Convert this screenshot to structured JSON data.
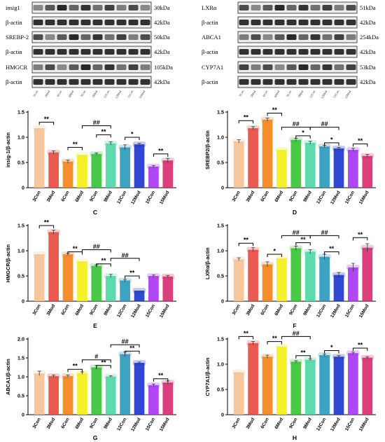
{
  "western_blots": [
    {
      "side": "left",
      "rows": [
        {
          "label": "insig1",
          "size": "30kDa"
        },
        {
          "label": "β-actin",
          "size": "42kDa"
        },
        {
          "label": "SREBP-2",
          "size": "50kDa"
        },
        {
          "label": "β-actin",
          "size": "42kDa"
        },
        {
          "label": "HMGCR",
          "size": "105kDa"
        },
        {
          "label": "β-actin",
          "size": "42kDa"
        }
      ]
    },
    {
      "side": "right",
      "rows": [
        {
          "label": "LXRα",
          "size": "51kDa"
        },
        {
          "label": "β-actin",
          "size": "42kDa"
        },
        {
          "label": "ABCA1",
          "size": "254kDa"
        },
        {
          "label": "β-actin",
          "size": "42kDa"
        },
        {
          "label": "CYP7A1",
          "size": "53kDa"
        },
        {
          "label": "β-actin",
          "size": "42kDa"
        }
      ]
    }
  ],
  "colors": [
    "#F5BF8E",
    "#E8433A",
    "#F57F0E",
    "#F2EE0E",
    "#2FC12F",
    "#47D6A3",
    "#2196B8",
    "#1430CC",
    "#A52DF2",
    "#D6246A"
  ],
  "chart_data": [
    {
      "panel": "C",
      "type": "bar",
      "ylabel": "insig-1/β-actin",
      "ylim": [
        0,
        1.5
      ],
      "yticks": [
        0,
        0.5,
        1.0,
        1.5
      ],
      "categories": [
        "3Con",
        "3Mod",
        "6Con",
        "6Mod",
        "9Con",
        "9Mod",
        "12Con",
        "12Mod",
        "15Con",
        "15Mod"
      ],
      "values": [
        1.18,
        0.7,
        0.52,
        0.65,
        0.67,
        0.88,
        0.8,
        0.86,
        0.42,
        0.54
      ],
      "errors": [
        0.0,
        0.03,
        0.03,
        0.0,
        0.02,
        0.03,
        0.05,
        0.02,
        0.02,
        0.04
      ],
      "brackets": [
        {
          "from": 0,
          "to": 1,
          "label": "**",
          "level": 1.3
        },
        {
          "from": 2,
          "to": 3,
          "label": "**",
          "level": 0.8
        },
        {
          "from": 4,
          "to": 5,
          "label": "**",
          "level": 1.05
        },
        {
          "from": 3,
          "to": 5,
          "label": "##",
          "level": 1.23
        },
        {
          "from": 6,
          "to": 7,
          "label": "*",
          "level": 1.0
        },
        {
          "from": 8,
          "to": 9,
          "label": "**",
          "level": 0.67
        }
      ]
    },
    {
      "panel": "D",
      "type": "bar",
      "ylabel": "SREBP2/β-actin",
      "ylim": [
        0,
        1.5
      ],
      "yticks": [
        0,
        0.5,
        1.0,
        1.5
      ],
      "categories": [
        "3Con",
        "3Mod",
        "6Con",
        "6Mod",
        "9Con",
        "9Mod",
        "12Con",
        "12Mod",
        "15Con",
        "15Mod"
      ],
      "values": [
        0.92,
        1.18,
        1.35,
        0.75,
        0.95,
        0.89,
        0.82,
        0.78,
        0.75,
        0.63
      ],
      "errors": [
        0.03,
        0.03,
        0.03,
        0.0,
        0.03,
        0.03,
        0.02,
        0.02,
        0.03,
        0.03
      ],
      "brackets": [
        {
          "from": 0,
          "to": 1,
          "label": "**",
          "level": 1.33
        },
        {
          "from": 2,
          "to": 3,
          "label": "**",
          "level": 1.48
        },
        {
          "from": 3,
          "to": 5,
          "label": "##",
          "level": 1.2
        },
        {
          "from": 4,
          "to": 5,
          "label": "*",
          "level": 1.03
        },
        {
          "from": 5,
          "to": 7,
          "label": "##",
          "level": 1.2
        },
        {
          "from": 6,
          "to": 7,
          "label": "*",
          "level": 0.89
        },
        {
          "from": 8,
          "to": 9,
          "label": "**",
          "level": 0.87
        }
      ]
    },
    {
      "panel": "E",
      "type": "bar",
      "ylabel": "HMGCR/β-actin",
      "ylim": [
        0,
        1.5
      ],
      "yticks": [
        0,
        0.5,
        1.0,
        1.5
      ],
      "categories": [
        "3Con",
        "3Mod",
        "6Con",
        "6Mod",
        "9Con",
        "9Mod",
        "12Con",
        "12Mod",
        "15Con",
        "15Mod"
      ],
      "values": [
        0.93,
        1.37,
        0.93,
        0.79,
        0.7,
        0.5,
        0.41,
        0.21,
        0.5,
        0.49
      ],
      "errors": [
        0.0,
        0.04,
        0.02,
        0.0,
        0.02,
        0.03,
        0.02,
        0.0,
        0.02,
        0.02
      ],
      "brackets": [
        {
          "from": 0,
          "to": 1,
          "label": "**",
          "level": 1.5
        },
        {
          "from": 2,
          "to": 3,
          "label": "**",
          "level": 0.98
        },
        {
          "from": 3,
          "to": 5,
          "label": "##",
          "level": 1.02
        },
        {
          "from": 4,
          "to": 5,
          "label": "**",
          "level": 0.74
        },
        {
          "from": 5,
          "to": 7,
          "label": "##",
          "level": 0.85
        },
        {
          "from": 6,
          "to": 7,
          "label": "**",
          "level": 0.5
        }
      ]
    },
    {
      "panel": "F",
      "type": "bar",
      "ylabel": "LXRα/β-actin",
      "ylim": [
        0,
        1.5
      ],
      "yticks": [
        0,
        0.5,
        1.0,
        1.5
      ],
      "categories": [
        "3Con",
        "3Mod",
        "6Con",
        "6Mod",
        "9Con",
        "9Mod",
        "12Con",
        "12Mod",
        "15Con",
        "15Mod"
      ],
      "values": [
        0.83,
        1.02,
        0.73,
        0.85,
        1.05,
        0.98,
        0.88,
        0.52,
        0.67,
        1.06
      ],
      "errors": [
        0.03,
        0.04,
        0.05,
        0.0,
        0.04,
        0.04,
        0.05,
        0.05,
        0.08,
        0.08
      ],
      "brackets": [
        {
          "from": 0,
          "to": 1,
          "label": "**",
          "level": 1.15
        },
        {
          "from": 2,
          "to": 3,
          "label": "*",
          "level": 0.93
        },
        {
          "from": 3,
          "to": 5,
          "label": "##",
          "level": 1.3
        },
        {
          "from": 4,
          "to": 5,
          "label": "**",
          "level": 1.16
        },
        {
          "from": 5,
          "to": 7,
          "label": "##",
          "level": 1.3
        },
        {
          "from": 6,
          "to": 7,
          "label": "**",
          "level": 0.98
        },
        {
          "from": 8,
          "to": 9,
          "label": "**",
          "level": 1.26
        }
      ]
    },
    {
      "panel": "G",
      "type": "bar",
      "ylabel": "ABCA1/β-actin",
      "ylim": [
        0,
        2.0
      ],
      "yticks": [
        0,
        0.5,
        1.0,
        1.5,
        2.0
      ],
      "categories": [
        "3Con",
        "3Mod",
        "6Con",
        "6Mod",
        "9Con",
        "9Mod",
        "12Con",
        "12Mod",
        "15Con",
        "15Mod"
      ],
      "values": [
        1.09,
        1.02,
        1.02,
        1.1,
        1.25,
        1.01,
        1.6,
        1.37,
        0.78,
        0.85
      ],
      "errors": [
        0.06,
        0.03,
        0.03,
        0.03,
        0.05,
        0.02,
        0.06,
        0.02,
        0.03,
        0.04
      ],
      "brackets": [
        {
          "from": 2,
          "to": 3,
          "label": "**",
          "level": 1.2
        },
        {
          "from": 3,
          "to": 5,
          "label": "#",
          "level": 1.45
        },
        {
          "from": 4,
          "to": 5,
          "label": "**",
          "level": 1.3
        },
        {
          "from": 5,
          "to": 7,
          "label": "##",
          "level": 1.85
        },
        {
          "from": 6,
          "to": 7,
          "label": "**",
          "level": 1.68
        },
        {
          "from": 8,
          "to": 9,
          "label": "**",
          "level": 0.95
        }
      ]
    },
    {
      "panel": "H",
      "type": "bar",
      "ylabel": "CYP7A1/β-actin",
      "ylim": [
        0,
        1.5
      ],
      "yticks": [
        0,
        0.5,
        1.0,
        1.5
      ],
      "categories": [
        "3Con",
        "3Mod",
        "6Con",
        "6Mod",
        "9Con",
        "9Mod",
        "12Con",
        "12Mod",
        "15Con",
        "15Mod"
      ],
      "values": [
        0.84,
        1.42,
        1.15,
        1.35,
        1.05,
        1.09,
        1.18,
        1.15,
        1.22,
        1.13
      ],
      "errors": [
        0.0,
        0.03,
        0.03,
        0.0,
        0.02,
        0.02,
        0.02,
        0.02,
        0.02,
        0.02
      ],
      "brackets": [
        {
          "from": 0,
          "to": 1,
          "label": "**",
          "level": 1.55
        },
        {
          "from": 2,
          "to": 3,
          "label": "**",
          "level": 1.45
        },
        {
          "from": 3,
          "to": 5,
          "label": "##",
          "level": 1.55
        },
        {
          "from": 4,
          "to": 5,
          "label": "**",
          "level": 1.17
        },
        {
          "from": 6,
          "to": 7,
          "label": "*",
          "level": 1.27
        },
        {
          "from": 8,
          "to": 9,
          "label": "**",
          "level": 1.32
        }
      ]
    }
  ]
}
